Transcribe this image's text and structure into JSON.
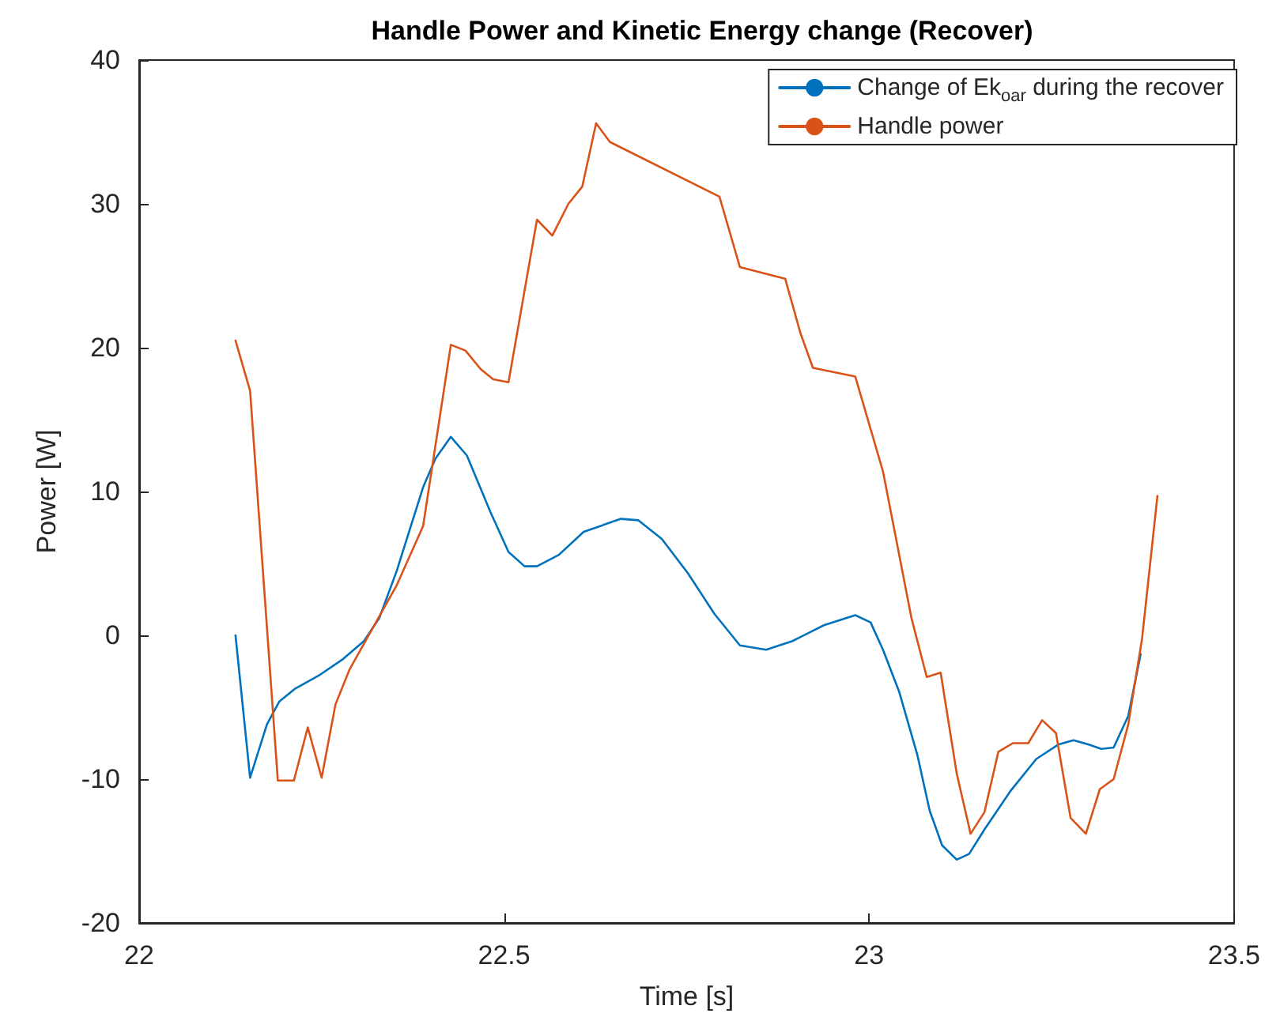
{
  "chart_data": {
    "type": "line",
    "title": "Handle Power and Kinetic Energy change (Recover)",
    "xlabel": "Time [s]",
    "ylabel": "Power [W]",
    "xlim": [
      22,
      23.5
    ],
    "xticks": [
      22,
      22.5,
      23,
      23.5
    ],
    "ylim": [
      -20,
      40
    ],
    "yticks": [
      -20,
      -10,
      0,
      10,
      20,
      30,
      40
    ],
    "grid": false,
    "legend": "top right",
    "marker": "none",
    "line_style": "solid",
    "series": [
      {
        "name": "Change of Ek$_{oar}$ during the recover",
        "color": "#0072bd",
        "x": [
          22.132,
          22.152,
          22.175,
          22.192,
          22.214,
          22.246,
          22.278,
          22.308,
          22.329,
          22.353,
          22.389,
          22.406,
          22.427,
          22.449,
          22.481,
          22.506,
          22.528,
          22.545,
          22.575,
          22.609,
          22.66,
          22.684,
          22.716,
          22.752,
          22.788,
          22.823,
          22.859,
          22.895,
          22.938,
          22.981,
          23.002,
          23.019,
          23.041,
          23.066,
          23.083,
          23.1,
          23.12,
          23.137,
          23.158,
          23.194,
          23.229,
          23.259,
          23.28,
          23.301,
          23.318,
          23.335,
          23.355,
          23.372
        ],
        "values": [
          0,
          -9.9,
          -6.2,
          -4.6,
          -3.7,
          -2.8,
          -1.7,
          -0.4,
          1.2,
          4.5,
          10.3,
          12.3,
          13.8,
          12.5,
          8.6,
          5.8,
          4.8,
          4.8,
          5.6,
          7.2,
          8.1,
          8.0,
          6.7,
          4.3,
          1.5,
          -0.7,
          -1,
          -0.4,
          0.7,
          1.4,
          0.9,
          -1,
          -3.9,
          -8.3,
          -12.2,
          -14.6,
          -15.6,
          -15.2,
          -13.5,
          -10.8,
          -8.6,
          -7.6,
          -7.3,
          -7.6,
          -7.9,
          -7.8,
          -5.6,
          -1.3
        ]
      },
      {
        "name": "Handle power",
        "color": "#d95319",
        "x": [
          22.132,
          22.152,
          22.19,
          22.212,
          22.231,
          22.25,
          22.269,
          22.288,
          22.353,
          22.389,
          22.427,
          22.447,
          22.468,
          22.485,
          22.506,
          22.545,
          22.566,
          22.588,
          22.607,
          22.626,
          22.645,
          22.795,
          22.823,
          22.885,
          22.906,
          22.923,
          22.981,
          23.019,
          23.058,
          23.079,
          23.098,
          23.12,
          23.139,
          23.158,
          23.177,
          23.197,
          23.218,
          23.237,
          23.256,
          23.276,
          23.297,
          23.316,
          23.335,
          23.355,
          23.374,
          23.395
        ],
        "values": [
          20.5,
          17,
          -10.1,
          -10.1,
          -6.4,
          -9.9,
          -4.8,
          -2.4,
          3.5,
          7.6,
          20.2,
          19.8,
          18.5,
          17.8,
          17.6,
          28.9,
          27.8,
          30,
          31.2,
          35.6,
          34.3,
          30.5,
          25.6,
          24.8,
          21,
          18.6,
          18,
          11.4,
          1.2,
          -2.9,
          -2.6,
          -9.6,
          -13.8,
          -12.3,
          -8.1,
          -7.5,
          -7.5,
          -5.9,
          -6.8,
          -12.7,
          -13.8,
          -10.7,
          -10,
          -6.2,
          -0.2,
          9.7
        ]
      }
    ]
  }
}
